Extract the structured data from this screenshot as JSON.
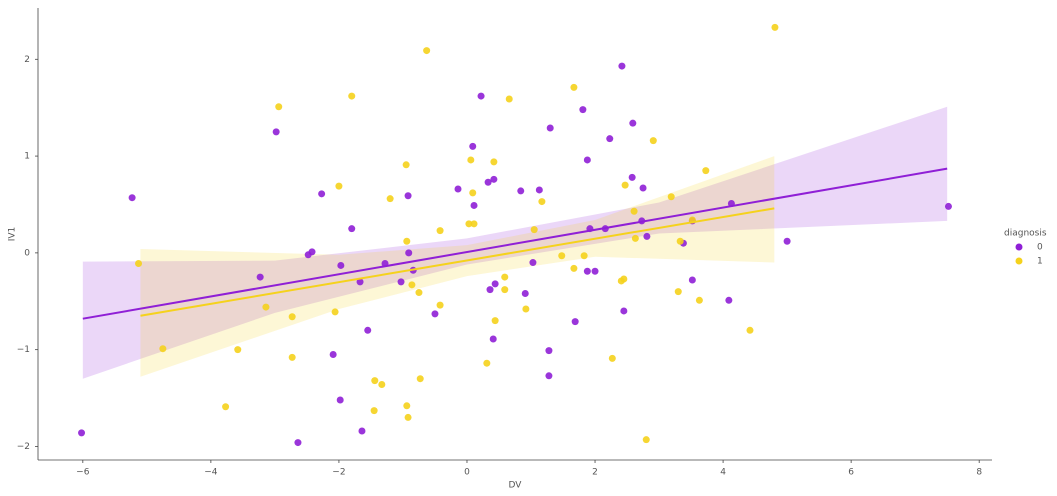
{
  "chart_data": {
    "type": "scatter",
    "x_label": "DV",
    "y_label": "IV1",
    "legend_title": "diagnosis",
    "xlim": [
      -6.7,
      8.2
    ],
    "ylim": [
      -2.14,
      2.53
    ],
    "xticks": [
      {
        "value": -6,
        "label": "−6"
      },
      {
        "value": -4,
        "label": "−4"
      },
      {
        "value": -2,
        "label": "−2"
      },
      0,
      2,
      4,
      6,
      8
    ],
    "yticks": [
      {
        "value": -2,
        "label": "−2"
      },
      {
        "value": -1,
        "label": "−1"
      },
      0,
      1,
      2
    ],
    "grid": false,
    "legend_position": "right",
    "series": [
      {
        "name": "0",
        "color": "#8f1fd6",
        "x": [
          -6.02,
          -5.23,
          -2.98,
          -3.23,
          -2.64,
          -2.48,
          -2.42,
          -2.27,
          -1.97,
          -1.8,
          -2.09,
          -1.98,
          -1.64,
          -1.55,
          -1.67,
          -1.28,
          -1.03,
          -0.92,
          -0.91,
          -0.84,
          -0.5,
          -0.14,
          0.09,
          0.11,
          0.33,
          0.42,
          0.36,
          0.44,
          0.41,
          0.22,
          0.84,
          0.91,
          1.03,
          1.13,
          1.3,
          1.28,
          1.28,
          1.69,
          1.81,
          1.88,
          1.92,
          1.88,
          2.0,
          2.16,
          2.23,
          2.42,
          2.45,
          2.59,
          2.58,
          2.73,
          2.75,
          2.81,
          3.38,
          3.52,
          3.52,
          4.09,
          4.13,
          5.0,
          7.52
        ],
        "y": [
          -1.86,
          0.57,
          1.25,
          -0.25,
          -1.96,
          -0.02,
          0.01,
          0.61,
          -0.13,
          0.25,
          -1.05,
          -1.52,
          -1.84,
          -0.8,
          -0.3,
          -0.11,
          -0.3,
          0.59,
          0.0,
          -0.18,
          -0.63,
          0.66,
          1.1,
          0.49,
          0.73,
          0.76,
          -0.38,
          -0.32,
          -0.89,
          1.62,
          0.64,
          -0.42,
          -0.1,
          0.65,
          1.29,
          -1.01,
          -1.27,
          -0.71,
          1.48,
          0.96,
          0.25,
          -0.19,
          -0.19,
          0.25,
          1.18,
          1.93,
          -0.6,
          1.34,
          0.78,
          0.33,
          0.67,
          0.17,
          0.1,
          -0.28,
          0.33,
          -0.49,
          0.51,
          0.12,
          0.48
        ],
        "fit_x": [
          -6,
          7.5
        ],
        "fit_y": [
          -0.68,
          0.87
        ],
        "ci_x": [
          -6,
          -3,
          0,
          3,
          7.5
        ],
        "ci_lower": [
          -1.3,
          -0.62,
          -0.12,
          0.2,
          0.33
        ],
        "ci_upper": [
          -0.09,
          -0.08,
          0.15,
          0.52,
          1.51
        ]
      },
      {
        "name": "1",
        "color": "#f5d21c",
        "x": [
          -5.13,
          -4.75,
          -3.77,
          -3.58,
          -3.14,
          -2.94,
          -2.73,
          -2.73,
          -2.06,
          -2.0,
          -1.8,
          -1.44,
          -1.33,
          -1.45,
          -1.2,
          -0.95,
          -0.94,
          -0.86,
          -0.94,
          -0.92,
          -0.75,
          -0.73,
          -0.63,
          -0.42,
          -0.42,
          0.03,
          0.06,
          0.09,
          0.11,
          0.31,
          0.42,
          0.44,
          0.59,
          0.59,
          0.66,
          0.92,
          1.05,
          1.17,
          1.48,
          1.67,
          1.67,
          1.83,
          2.27,
          2.41,
          2.45,
          2.47,
          2.61,
          2.63,
          2.8,
          2.91,
          3.19,
          3.3,
          3.33,
          3.52,
          3.63,
          3.73,
          4.42,
          4.81
        ],
        "y": [
          -0.11,
          -0.99,
          -1.59,
          -1.0,
          -0.56,
          1.51,
          -0.66,
          -1.08,
          -0.61,
          0.69,
          1.62,
          -1.32,
          -1.36,
          -1.63,
          0.56,
          0.91,
          0.12,
          -0.33,
          -1.58,
          -1.7,
          -0.41,
          -1.3,
          2.09,
          0.23,
          -0.54,
          0.3,
          0.96,
          0.62,
          0.3,
          -1.14,
          0.94,
          -0.7,
          -0.25,
          -0.38,
          1.59,
          -0.58,
          0.24,
          0.53,
          -0.03,
          1.71,
          -0.16,
          -0.03,
          -1.09,
          -0.29,
          -0.27,
          0.7,
          0.43,
          0.15,
          -1.93,
          1.16,
          0.58,
          -0.4,
          0.12,
          0.34,
          -0.49,
          0.85,
          -0.8,
          2.33
        ],
        "fit_x": [
          -5.1,
          4.8
        ],
        "fit_y": [
          -0.65,
          0.46
        ],
        "ci_x": [
          -5.1,
          -2,
          0,
          2,
          4.8
        ],
        "ci_lower": [
          -1.28,
          -0.58,
          -0.24,
          -0.04,
          -0.1
        ],
        "ci_upper": [
          0.04,
          -0.02,
          0.08,
          0.34,
          1.0
        ]
      }
    ]
  }
}
